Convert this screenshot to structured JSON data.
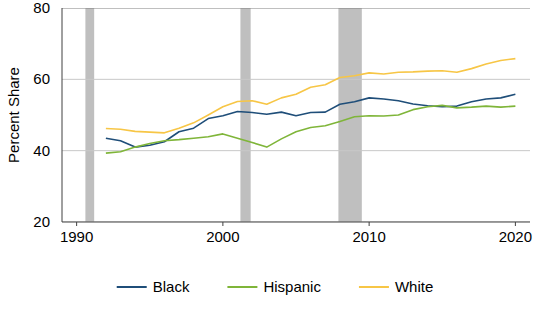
{
  "chart_data": {
    "type": "line",
    "y_label": "Percent Share",
    "x": [
      1992,
      1993,
      1994,
      1995,
      1996,
      1997,
      1998,
      1999,
      2000,
      2001,
      2002,
      2003,
      2004,
      2005,
      2006,
      2007,
      2008,
      2009,
      2010,
      2011,
      2012,
      2013,
      2014,
      2015,
      2016,
      2017,
      2018,
      2019,
      2020
    ],
    "series": [
      {
        "name": "Black",
        "color": "#1f4e79",
        "values": [
          43.5,
          42.8,
          41,
          41.5,
          42.5,
          45.3,
          46.3,
          49,
          49.8,
          51,
          50.7,
          50.2,
          50.8,
          49.8,
          50.7,
          50.8,
          53,
          53.7,
          54.8,
          54.5,
          54,
          53.1,
          52.6,
          52.3,
          52.5,
          53.7,
          54.5,
          54.8,
          55.8
        ]
      },
      {
        "name": "Hispanic",
        "color": "#7fb539",
        "values": [
          39.3,
          39.7,
          41,
          42,
          42.8,
          43.1,
          43.5,
          43.9,
          44.7,
          43.5,
          42.3,
          41,
          43.3,
          45.3,
          46.5,
          47,
          48.2,
          49.5,
          49.8,
          49.7,
          50,
          51.5,
          52.3,
          52.7,
          52,
          52.2,
          52.5,
          52.2,
          52.5
        ]
      },
      {
        "name": "White",
        "color": "#f7c646",
        "values": [
          46.2,
          46,
          45.4,
          45.2,
          45,
          46.3,
          47.8,
          50,
          52.3,
          53.8,
          54,
          53,
          54.8,
          55.8,
          57.8,
          58.5,
          60.5,
          61,
          61.8,
          61.5,
          62,
          62.1,
          62.3,
          62.4,
          62,
          63,
          64.3,
          65.3,
          65.8
        ]
      }
    ],
    "shaded_ranges": [
      {
        "start": 1990.6,
        "end": 1991.2
      },
      {
        "start": 2001.2,
        "end": 2001.9
      },
      {
        "start": 2007.9,
        "end": 2009.5
      }
    ],
    "xlim": [
      1989,
      2021
    ],
    "xticks": [
      1990,
      2000,
      2010,
      2020
    ],
    "ylim": [
      20,
      80
    ],
    "yticks": [
      20,
      40,
      60,
      80
    ],
    "grid": true,
    "legend": "bottom"
  }
}
